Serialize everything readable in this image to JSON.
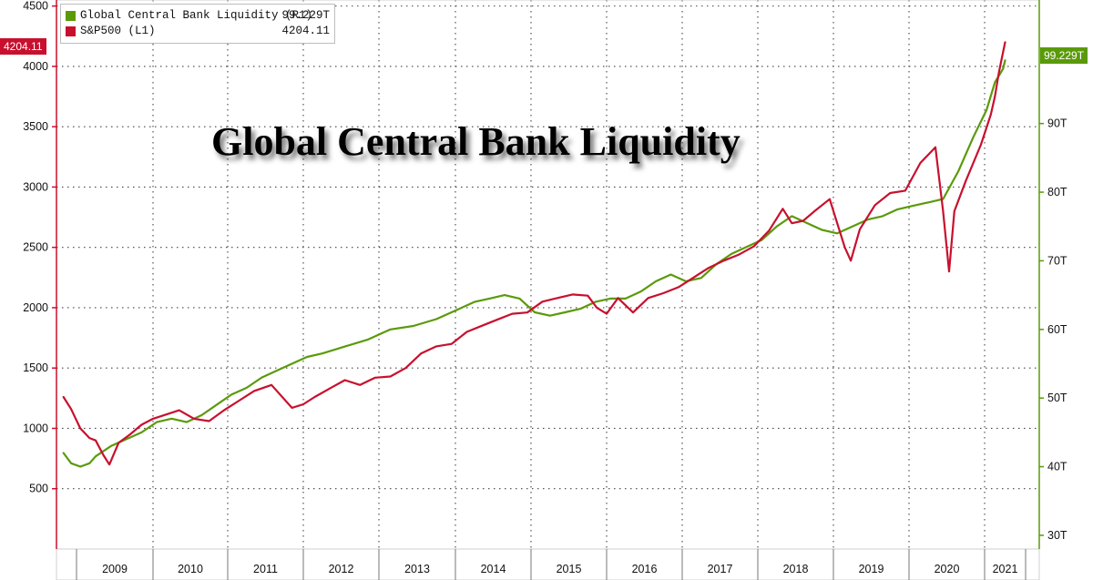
{
  "title": "Global Central Bank Liquidity",
  "legend": [
    {
      "label": "Global Central Bank Liquidity (R1)",
      "value": "99.229T",
      "color": "#5a9a0a"
    },
    {
      "label": "S&P500 (L1)",
      "value": "4204.11",
      "color": "#c8102e"
    }
  ],
  "last_value_tags": {
    "left": {
      "text": "4204.11",
      "color": "#c8102e"
    },
    "right": {
      "text": "99.229T",
      "color": "#5a9a0a"
    }
  },
  "chart_data": {
    "type": "line",
    "title": "Global Central Bank Liquidity",
    "x_tick_labels": [
      "2009",
      "2010",
      "2011",
      "2012",
      "2013",
      "2014",
      "2015",
      "2016",
      "2017",
      "2018",
      "2019",
      "2020",
      "2021"
    ],
    "left_axis": {
      "ticks": [
        "500",
        "1000",
        "1500",
        "2000",
        "2500",
        "3000",
        "3500",
        "4000",
        "4500"
      ],
      "ylim": [
        0,
        4550
      ]
    },
    "right_axis": {
      "ticks": [
        "30T",
        "40T",
        "50T",
        "60T",
        "70T",
        "80T",
        "90T"
      ],
      "ylim": [
        28,
        108
      ]
    },
    "grid": true,
    "legend_position": "top-left",
    "series": [
      {
        "name": "S&P500 (L1)",
        "axis": "left",
        "color": "#c8102e",
        "x": [
          2008.58,
          2008.68,
          2008.8,
          2008.92,
          2009.0,
          2009.1,
          2009.18,
          2009.3,
          2009.45,
          2009.6,
          2009.75,
          2009.9,
          2010.1,
          2010.3,
          2010.5,
          2010.7,
          2010.9,
          2011.1,
          2011.33,
          2011.6,
          2011.75,
          2011.9,
          2012.1,
          2012.3,
          2012.5,
          2012.7,
          2012.9,
          2013.1,
          2013.3,
          2013.5,
          2013.7,
          2013.9,
          2014.1,
          2014.3,
          2014.5,
          2014.7,
          2014.9,
          2015.1,
          2015.3,
          2015.5,
          2015.62,
          2015.75,
          2015.9,
          2016.1,
          2016.3,
          2016.5,
          2016.7,
          2016.9,
          2017.1,
          2017.3,
          2017.5,
          2017.7,
          2017.9,
          2018.08,
          2018.2,
          2018.35,
          2018.5,
          2018.7,
          2018.9,
          2018.98,
          2019.1,
          2019.3,
          2019.5,
          2019.7,
          2019.9,
          2020.1,
          2020.2,
          2020.28,
          2020.35,
          2020.5,
          2020.7,
          2020.9,
          2021.0,
          2021.1,
          2021.25
        ],
        "values": [
          1260,
          1160,
          1000,
          920,
          900,
          780,
          700,
          880,
          950,
          1030,
          1080,
          1110,
          1150,
          1080,
          1060,
          1150,
          1230,
          1310,
          1360,
          1170,
          1200,
          1260,
          1330,
          1400,
          1360,
          1420,
          1430,
          1500,
          1620,
          1680,
          1700,
          1800,
          1850,
          1900,
          1950,
          1960,
          2050,
          2080,
          2110,
          2100,
          2000,
          1950,
          2080,
          1960,
          2080,
          2120,
          2170,
          2250,
          2330,
          2390,
          2440,
          2510,
          2640,
          2820,
          2700,
          2720,
          2800,
          2900,
          2500,
          2390,
          2650,
          2850,
          2950,
          2970,
          3200,
          3330,
          2800,
          2300,
          2800,
          3050,
          3350,
          3600,
          3750,
          3950,
          4200
        ]
      },
      {
        "name": "Global Central Bank Liquidity (R1)",
        "axis": "right",
        "color": "#5a9a0a",
        "x": [
          2008.58,
          2008.68,
          2008.8,
          2008.92,
          2009.0,
          2009.2,
          2009.4,
          2009.6,
          2009.8,
          2010.0,
          2010.2,
          2010.4,
          2010.6,
          2010.8,
          2011.0,
          2011.2,
          2011.4,
          2011.6,
          2011.8,
          2012.0,
          2012.3,
          2012.6,
          2012.9,
          2013.2,
          2013.5,
          2013.8,
          2014.0,
          2014.2,
          2014.4,
          2014.6,
          2014.8,
          2015.0,
          2015.2,
          2015.4,
          2015.6,
          2015.8,
          2016.0,
          2016.2,
          2016.4,
          2016.6,
          2016.8,
          2017.0,
          2017.2,
          2017.4,
          2017.6,
          2017.8,
          2018.0,
          2018.2,
          2018.4,
          2018.6,
          2018.8,
          2019.0,
          2019.2,
          2019.4,
          2019.6,
          2019.8,
          2020.0,
          2020.2,
          2020.4,
          2020.6,
          2020.8,
          2021.0,
          2021.2,
          2021.25
        ],
        "values": [
          42,
          40.5,
          40,
          40.5,
          41.5,
          43,
          44,
          45,
          46.5,
          47,
          46.5,
          47.5,
          49,
          50.5,
          51.5,
          53,
          54,
          55,
          56,
          56.5,
          57.5,
          58.5,
          60,
          60.5,
          61.5,
          63,
          64,
          64.5,
          65,
          64.5,
          62.5,
          62,
          62.5,
          63,
          64,
          64.5,
          64.5,
          65.5,
          67,
          68,
          67,
          67.5,
          69.5,
          71,
          72,
          73,
          75,
          76.5,
          75.5,
          74.5,
          74,
          75,
          76,
          76.5,
          77.5,
          78,
          78.5,
          79,
          83,
          88,
          92,
          96,
          98,
          99.2
        ]
      }
    ]
  }
}
